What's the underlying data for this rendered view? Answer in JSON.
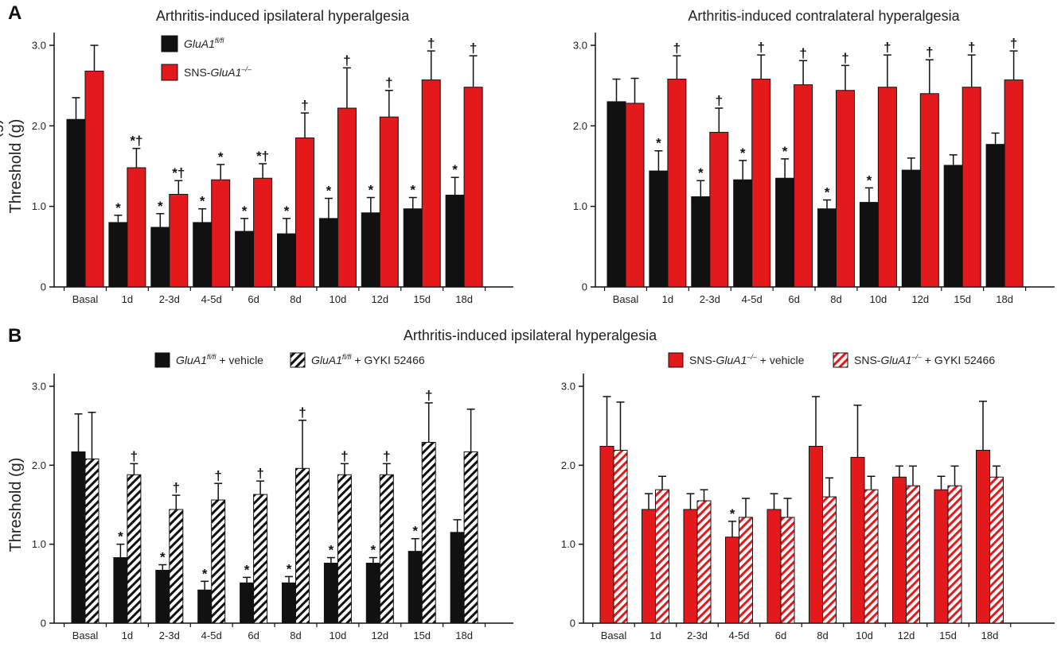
{
  "figure": {
    "panel_a_label": "A",
    "panel_b_label": "B",
    "title_b": "Arthritis-induced ipsilateral hyperalgesia",
    "colors": {
      "black": "#111111",
      "red": "#e3191c",
      "hatch_bg": "#ffffff"
    }
  },
  "chart_data": [
    {
      "type": "bar",
      "title": "Arthritis-induced ipsilateral hyperalgesia",
      "ylabel": "Threshold (g)",
      "ylim": [
        0,
        3.0
      ],
      "yticks": [
        "0",
        "1.0",
        "2.0",
        "3.0"
      ],
      "categories": [
        "Basal",
        "1d",
        "2-3d",
        "4-5d",
        "6d",
        "8d",
        "10d",
        "12d",
        "15d",
        "18d"
      ],
      "legend_position": "top-left",
      "series": [
        {
          "name": "GluA1fl/fl",
          "name_parts": {
            "gene": "GluA1",
            "sup": "fl/fl",
            "pre": "",
            "post": ""
          },
          "style": "black",
          "values": [
            2.08,
            0.8,
            0.74,
            0.8,
            0.69,
            0.66,
            0.85,
            0.92,
            0.97,
            1.14
          ],
          "errors": [
            0.27,
            0.09,
            0.17,
            0.17,
            0.16,
            0.19,
            0.25,
            0.19,
            0.14,
            0.22
          ],
          "marks": [
            "",
            "*",
            "*",
            "*",
            "*",
            "*",
            "*",
            "*",
            "*",
            "*"
          ]
        },
        {
          "name": "SNS-GluA1–/–",
          "name_parts": {
            "gene": "GluA1",
            "sup": "–/–",
            "pre": "SNS-",
            "post": ""
          },
          "style": "red",
          "values": [
            2.68,
            1.48,
            1.15,
            1.33,
            1.35,
            1.85,
            2.22,
            2.11,
            2.57,
            2.48
          ],
          "errors": [
            0.32,
            0.24,
            0.17,
            0.19,
            0.18,
            0.31,
            0.5,
            0.33,
            0.36,
            0.39
          ],
          "marks": [
            "",
            "*†",
            "*†",
            "*",
            "*†",
            "†",
            "†",
            "†",
            "†",
            "†"
          ]
        }
      ]
    },
    {
      "type": "bar",
      "title": "Arthritis-induced contralateral hyperalgesia",
      "ylabel": "Threshold (g)",
      "ylim": [
        0,
        3.0
      ],
      "yticks": [
        "0",
        "1.0",
        "2.0",
        "3.0"
      ],
      "categories": [
        "Basal",
        "1d",
        "2-3d",
        "4-5d",
        "6d",
        "8d",
        "10d",
        "12d",
        "15d",
        "18d"
      ],
      "series": [
        {
          "style": "black",
          "values": [
            2.3,
            1.44,
            1.12,
            1.33,
            1.35,
            0.97,
            1.05,
            1.45,
            1.51,
            1.77
          ],
          "errors": [
            0.28,
            0.25,
            0.2,
            0.24,
            0.24,
            0.11,
            0.18,
            0.15,
            0.13,
            0.14
          ],
          "marks": [
            "",
            "*",
            "*",
            "*",
            "*",
            "*",
            "*",
            "",
            "",
            ""
          ]
        },
        {
          "style": "red",
          "values": [
            2.28,
            2.58,
            1.92,
            2.58,
            2.51,
            2.44,
            2.48,
            2.4,
            2.48,
            2.57
          ],
          "errors": [
            0.31,
            0.29,
            0.3,
            0.3,
            0.3,
            0.31,
            0.4,
            0.42,
            0.4,
            0.36
          ],
          "marks": [
            "",
            "†",
            "†",
            "†",
            "†",
            "†",
            "†",
            "†",
            "†",
            "†"
          ]
        }
      ]
    },
    {
      "type": "bar",
      "title": "",
      "ylabel": "Threshold (g)",
      "ylim": [
        0,
        3.0
      ],
      "yticks": [
        "0",
        "1.0",
        "2.0",
        "3.0"
      ],
      "categories": [
        "Basal",
        "1d",
        "2-3d",
        "4-5d",
        "6d",
        "8d",
        "10d",
        "12d",
        "15d",
        "18d"
      ],
      "legend_position": "top",
      "series": [
        {
          "name": "GluA1fl/fl + vehicle",
          "name_parts": {
            "gene": "GluA1",
            "sup": "fl/fl",
            "pre": "",
            "post": " + vehicle"
          },
          "style": "black",
          "values": [
            2.17,
            0.83,
            0.67,
            0.42,
            0.51,
            0.51,
            0.76,
            0.76,
            0.91,
            1.15
          ],
          "errors": [
            0.48,
            0.17,
            0.07,
            0.11,
            0.07,
            0.08,
            0.07,
            0.07,
            0.16,
            0.16
          ],
          "marks": [
            "",
            "*",
            "*",
            "*",
            "*",
            "*",
            "*",
            "*",
            "*",
            ""
          ]
        },
        {
          "name": "GluA1fl/fl + GYKI 52466",
          "name_parts": {
            "gene": "GluA1",
            "sup": "fl/fl",
            "pre": "",
            "post": " + GYKI 52466"
          },
          "style": "hatch-black",
          "values": [
            2.08,
            1.88,
            1.44,
            1.56,
            1.63,
            1.96,
            1.88,
            1.88,
            2.29,
            2.17
          ],
          "errors": [
            0.59,
            0.14,
            0.18,
            0.21,
            0.17,
            0.61,
            0.14,
            0.14,
            0.5,
            0.54
          ],
          "marks": [
            "",
            "†",
            "†",
            "†",
            "†",
            "†",
            "†",
            "†",
            "†",
            ""
          ]
        }
      ]
    },
    {
      "type": "bar",
      "title": "",
      "ylabel": "",
      "ylim": [
        0,
        3.0
      ],
      "yticks": [
        "0",
        "1.0",
        "2.0",
        "3.0"
      ],
      "categories": [
        "Basal",
        "1d",
        "2-3d",
        "4-5d",
        "6d",
        "8d",
        "10d",
        "12d",
        "15d",
        "18d"
      ],
      "legend_position": "top",
      "series": [
        {
          "name": "SNS-GluA1–/– + vehicle",
          "name_parts": {
            "gene": "GluA1",
            "sup": "–/–",
            "pre": "SNS-",
            "post": " + vehicle"
          },
          "style": "red",
          "values": [
            2.24,
            1.44,
            1.44,
            1.09,
            1.44,
            2.24,
            2.1,
            1.85,
            1.69,
            2.19
          ],
          "errors": [
            0.63,
            0.2,
            0.2,
            0.2,
            0.2,
            0.63,
            0.66,
            0.14,
            0.17,
            0.62
          ],
          "marks": [
            "",
            "",
            "",
            "*",
            "",
            "",
            "",
            "",
            "",
            ""
          ]
        },
        {
          "name": "SNS-GluA1–/– + GYKI 52466",
          "name_parts": {
            "gene": "GluA1",
            "sup": "–/–",
            "pre": "SNS-",
            "post": " + GYKI 52466"
          },
          "style": "hatch-red",
          "values": [
            2.19,
            1.69,
            1.55,
            1.34,
            1.34,
            1.6,
            1.69,
            1.74,
            1.74,
            1.85
          ],
          "errors": [
            0.61,
            0.17,
            0.14,
            0.24,
            0.24,
            0.24,
            0.17,
            0.25,
            0.25,
            0.14
          ],
          "marks": [
            "",
            "",
            "",
            "",
            "",
            "",
            "",
            "",
            "",
            ""
          ]
        }
      ]
    }
  ]
}
